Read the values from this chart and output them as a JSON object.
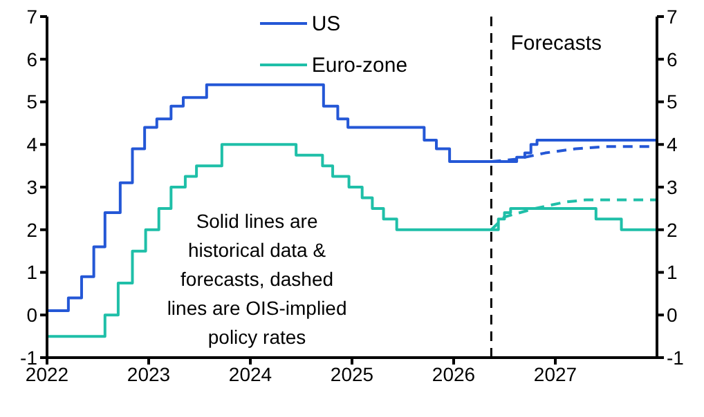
{
  "chart_data": {
    "type": "step",
    "xlim": [
      2022,
      2028
    ],
    "xticks": [
      2022,
      2023,
      2024,
      2025,
      2026,
      2027
    ],
    "ylim": [
      -1,
      7
    ],
    "yticks": [
      -1,
      0,
      1,
      2,
      3,
      4,
      5,
      6,
      7
    ],
    "y2lim": [
      -1,
      7
    ],
    "y2ticks": [
      -1,
      0,
      1,
      2,
      3,
      4,
      5,
      6,
      7
    ],
    "legend": "top",
    "marker": "none",
    "series": [
      {
        "name": "US",
        "color": "#2457d6",
        "line_style": "solid",
        "x": [
          2022,
          2022.21,
          2022.34,
          2022.46,
          2022.57,
          2022.72,
          2022.84,
          2022.96,
          2023.08,
          2023.22,
          2023.34,
          2023.57,
          2024.72,
          2024.86,
          2024.96,
          2025.71,
          2025.83,
          2025.96,
          2026.62,
          2026.7,
          2026.76,
          2026.82,
          2028
        ],
        "values": [
          0.1,
          0.4,
          0.9,
          1.6,
          2.4,
          3.1,
          3.9,
          4.4,
          4.6,
          4.9,
          5.1,
          5.4,
          4.9,
          4.6,
          4.4,
          4.1,
          3.9,
          3.6,
          3.7,
          3.8,
          4.0,
          4.1,
          4.1
        ]
      },
      {
        "name": "Euro-zone",
        "color": "#1fbfa8",
        "line_style": "solid",
        "x": [
          2022,
          2022.57,
          2022.7,
          2022.84,
          2022.97,
          2023.1,
          2023.22,
          2023.36,
          2023.47,
          2023.72,
          2024.45,
          2024.71,
          2024.81,
          2024.97,
          2025.1,
          2025.2,
          2025.31,
          2025.44,
          2026.44,
          2026.5,
          2026.56,
          2027.4,
          2027.65,
          2028
        ],
        "values": [
          -0.5,
          0,
          0.75,
          1.5,
          2,
          2.5,
          3,
          3.25,
          3.5,
          4,
          3.75,
          3.5,
          3.25,
          3,
          2.75,
          2.5,
          2.25,
          2,
          2.25,
          2.4,
          2.5,
          2.25,
          2,
          2
        ]
      },
      {
        "type": "line",
        "color": "#2457d6",
        "line_style": "dashed",
        "x": [
          2026.37,
          2026.6,
          2026.9,
          2027.2,
          2027.5,
          2028
        ],
        "values": [
          3.6,
          3.65,
          3.8,
          3.9,
          3.95,
          3.95
        ]
      },
      {
        "type": "line",
        "color": "#1fbfa8",
        "line_style": "dashed",
        "x": [
          2026.37,
          2026.5,
          2026.8,
          2027.1,
          2027.3,
          2028
        ],
        "values": [
          2.0,
          2.3,
          2.5,
          2.65,
          2.7,
          2.7
        ]
      }
    ],
    "ref_lines": [
      {
        "axis": "x",
        "value": 2026.37,
        "label": "Forecasts",
        "color": "#000000",
        "line_style": "dashed"
      }
    ],
    "annotations": [
      "Solid lines are historical data & forecasts, dashed lines are OIS-implied policy rates"
    ]
  }
}
